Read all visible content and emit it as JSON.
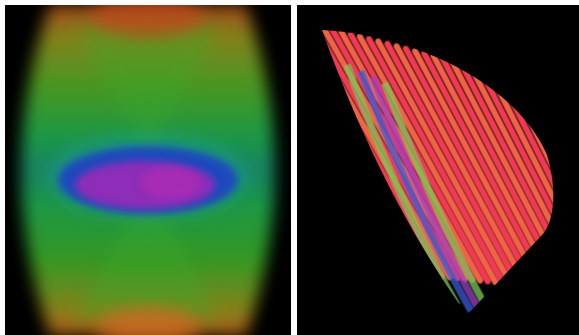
{
  "panels": [
    {
      "id": "left",
      "description_key": "volume-rendering-front",
      "colors": {
        "background": "#000000",
        "top_cap": "#c0461c",
        "upper_band": "#6aa01e",
        "mid_green": "#1e9a26",
        "center_ring": "#1e3cc0",
        "center_core": "#8a2ab0",
        "bottom_cap": "#d06a20"
      }
    },
    {
      "id": "right",
      "description_key": "fiber-streamlines-oblique",
      "colors": {
        "background": "#000000",
        "fiber_primary": "#ff3c5a",
        "fiber_secondary": "#ff6a4a",
        "fiber_green": "#7ac85a",
        "fiber_blue": "#3a5cd8",
        "fiber_purple": "#a040c0"
      }
    }
  ]
}
